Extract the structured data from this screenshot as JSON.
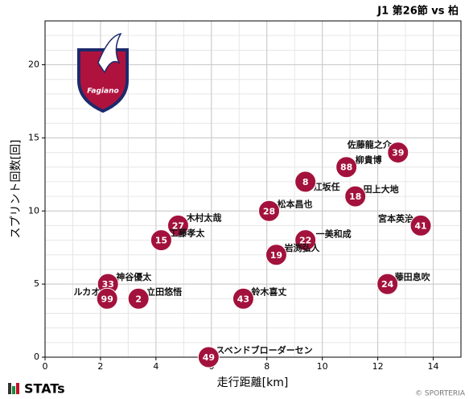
{
  "chart_data": {
    "type": "scatter",
    "title": "J1 第26節 vs 柏",
    "x_label": "走行距離[km]",
    "y_label": "スプリント回数[回]",
    "color": "#a3123c",
    "grid": true,
    "xlim": [
      0,
      15
    ],
    "xticks": [
      0,
      2,
      4,
      6,
      8,
      10,
      12,
      14
    ],
    "ylim": [
      0,
      23
    ],
    "yticks": [
      0,
      5,
      10,
      15,
      20
    ],
    "numbers": [
      "39",
      "88",
      "8",
      "18",
      "28",
      "41",
      "27",
      "15",
      "22",
      "19",
      "33",
      "24",
      "99",
      "2",
      "43",
      "49"
    ],
    "names": [
      "佐藤龍之介",
      "柳貴博",
      "江坂任",
      "田上大地",
      "松本昌也",
      "宮本英治",
      "木村太哉",
      "工藤孝太",
      "一美和成",
      "岩渕弘人",
      "神谷優太",
      "藤田息吹",
      "ルカオ",
      "立田悠悟",
      "鈴木喜丈",
      "スベンドブローダーセン"
    ],
    "x": [
      12.73,
      10.87,
      9.39,
      11.19,
      8.08,
      13.55,
      4.8,
      4.19,
      9.39,
      8.34,
      2.27,
      12.35,
      2.24,
      3.37,
      7.15,
      5.9
    ],
    "values": [
      14,
      13,
      12,
      11,
      10,
      9,
      9,
      8,
      8,
      7,
      5,
      5,
      4,
      4,
      4,
      0
    ],
    "logo_text": "STATs",
    "credit": "© SPORTERIA"
  }
}
